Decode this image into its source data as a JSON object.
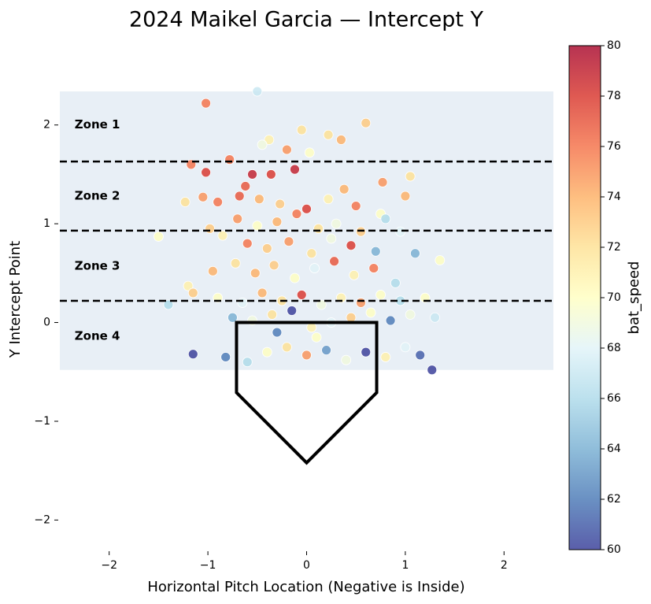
{
  "chart_data": {
    "type": "scatter",
    "title": "2024 Maikel Garcia — Intercept Y",
    "xlabel": "Horizontal Pitch Location (Negative is Inside)",
    "ylabel": "Y Intercept Point",
    "xlim": [
      -2.5,
      2.5
    ],
    "ylim": [
      -2.3,
      2.5
    ],
    "xticks": [
      {
        "value": -2,
        "label": "−2"
      },
      {
        "value": -1,
        "label": "−1"
      },
      0,
      1,
      2
    ],
    "yticks": [
      {
        "value": -2,
        "label": "−2"
      },
      {
        "value": -1,
        "label": "−1"
      },
      0,
      1,
      2
    ],
    "zone_region": {
      "color": "#e8eff6",
      "ylim": [
        -0.48,
        2.34
      ]
    },
    "zone_lines": [
      1.63,
      0.93,
      0.22
    ],
    "zones": [
      {
        "label": "Zone 1",
        "color": "#f5c518",
        "x": -2.35,
        "y": 2.0
      },
      {
        "label": "Zone 2",
        "color": "#e04848",
        "x": -2.35,
        "y": 1.28
      },
      {
        "label": "Zone 3",
        "color": "#f07080",
        "x": -2.35,
        "y": 0.57
      },
      {
        "label": "Zone 4",
        "color": "#3b82e6",
        "x": -2.35,
        "y": -0.14
      }
    ],
    "home_plate": {
      "x": [
        -0.71,
        0.71,
        0.71,
        0,
        -0.71
      ],
      "y": [
        0,
        0,
        -0.71,
        -1.42,
        -0.71
      ]
    },
    "colorbar": {
      "label": "bat_speed",
      "lim": [
        60,
        80
      ],
      "ticks": [
        60,
        62,
        64,
        66,
        68,
        70,
        72,
        74,
        76,
        78,
        80
      ],
      "colormap": [
        "#313695",
        "#4575b4",
        "#74add1",
        "#abd9e9",
        "#e0f3f8",
        "#ffffbf",
        "#fee090",
        "#fdae61",
        "#f46d43",
        "#d73027",
        "#a50026"
      ]
    },
    "series": [
      {
        "name": "bat_speed",
        "x": [
          -1.02,
          -0.5,
          -0.38,
          -0.05,
          0.6,
          -0.45,
          -0.2,
          0.22,
          0.35,
          0.03,
          -1.17,
          -1.02,
          -0.78,
          -0.55,
          -0.36,
          -0.12,
          0.38,
          0.77,
          1.05,
          -0.62,
          -1.05,
          -0.9,
          -0.68,
          -0.48,
          -0.27,
          0.0,
          0.22,
          0.5,
          0.75,
          1.0,
          -1.23,
          -0.98,
          -0.7,
          -0.5,
          -0.3,
          -0.1,
          0.12,
          0.3,
          0.55,
          0.8,
          -1.5,
          -0.85,
          -0.6,
          -0.4,
          -0.18,
          0.05,
          0.25,
          0.45,
          0.7,
          0.95,
          -1.2,
          -0.95,
          -0.72,
          -0.52,
          -0.33,
          -0.12,
          0.08,
          0.28,
          0.48,
          0.68,
          0.9,
          1.1,
          1.35,
          -1.15,
          -0.9,
          -0.65,
          -0.45,
          -0.25,
          -0.05,
          0.15,
          0.35,
          0.55,
          0.75,
          0.95,
          1.2,
          -1.4,
          -0.75,
          -0.55,
          -0.35,
          -0.15,
          0.05,
          0.25,
          0.45,
          0.65,
          0.85,
          1.05,
          1.3,
          -1.15,
          -0.82,
          -0.6,
          -0.4,
          -0.2,
          0.0,
          0.2,
          0.4,
          0.6,
          0.8,
          1.0,
          1.15,
          1.27,
          -0.3,
          0.1
        ],
        "y": [
          2.22,
          2.34,
          1.85,
          1.95,
          2.02,
          1.8,
          1.75,
          1.9,
          1.85,
          1.72,
          1.6,
          1.52,
          1.65,
          1.5,
          1.5,
          1.55,
          1.35,
          1.42,
          1.48,
          1.38,
          1.27,
          1.22,
          1.28,
          1.25,
          1.2,
          1.15,
          1.25,
          1.18,
          1.1,
          1.28,
          1.22,
          0.95,
          1.05,
          0.98,
          1.02,
          1.1,
          0.95,
          1.0,
          0.92,
          1.05,
          0.87,
          0.88,
          0.8,
          0.75,
          0.82,
          0.7,
          0.85,
          0.78,
          0.72,
          0.92,
          0.37,
          0.52,
          0.6,
          0.5,
          0.58,
          0.45,
          0.55,
          0.62,
          0.48,
          0.55,
          0.4,
          0.7,
          0.63,
          0.3,
          0.25,
          0.2,
          0.3,
          0.22,
          0.28,
          0.18,
          0.25,
          0.2,
          0.28,
          0.22,
          0.25,
          0.18,
          0.05,
          0.02,
          0.08,
          0.12,
          -0.05,
          0.0,
          0.05,
          0.1,
          0.02,
          0.08,
          0.05,
          -0.32,
          -0.35,
          -0.4,
          -0.3,
          -0.25,
          -0.33,
          -0.28,
          -0.38,
          -0.3,
          -0.35,
          -0.25,
          -0.33,
          -0.48,
          -0.1,
          -0.15
        ],
        "values": [
          76,
          67,
          71,
          72,
          73,
          69,
          75,
          72,
          74,
          70,
          76,
          78,
          76,
          79,
          78,
          79,
          74,
          75,
          72,
          77,
          75,
          76,
          77,
          74,
          73,
          78,
          71,
          76,
          70,
          74,
          72,
          73,
          75,
          70,
          74,
          76,
          72,
          69,
          73,
          66,
          70,
          71,
          76,
          73,
          75,
          72,
          69,
          78,
          64,
          68,
          71,
          74,
          72,
          74,
          73,
          70,
          68,
          77,
          71,
          76,
          66,
          64,
          70,
          73,
          70,
          68,
          74,
          72,
          78,
          69,
          71,
          75,
          70,
          66,
          70,
          66,
          64,
          69,
          72,
          60,
          71,
          68,
          73,
          70,
          62,
          69,
          67,
          60,
          62,
          66,
          70,
          72,
          75,
          63,
          69,
          60,
          71,
          68,
          61,
          60,
          62,
          70
        ]
      }
    ]
  }
}
